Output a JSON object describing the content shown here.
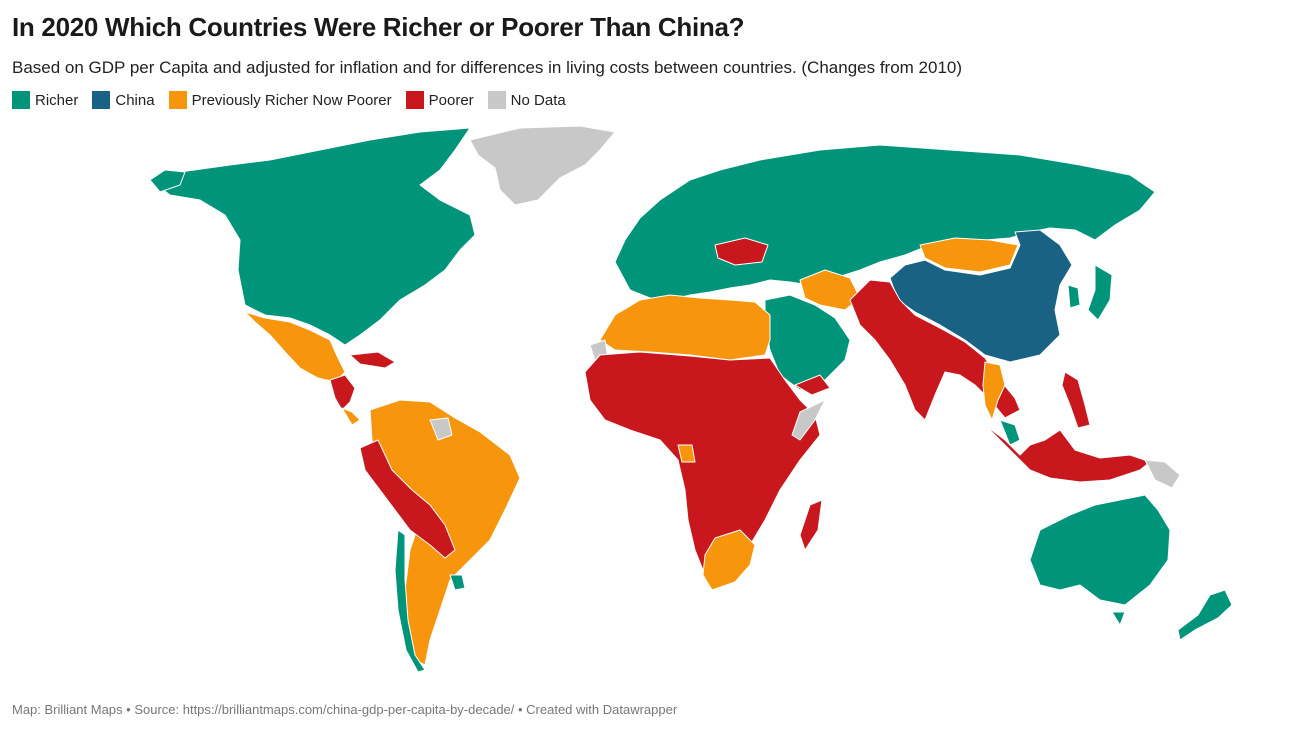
{
  "title": "In 2020 Which Countries Were Richer or Poorer Than China?",
  "subtitle": "Based on GDP per Capita and adjusted for inflation and for differences in living costs between countries. (Changes from 2010)",
  "legend": [
    {
      "label": "Richer",
      "color": "#00957a"
    },
    {
      "label": "China",
      "color": "#1a6283"
    },
    {
      "label": "Previously Richer Now Poorer",
      "color": "#f7960d"
    },
    {
      "label": "Poorer",
      "color": "#c8181e"
    },
    {
      "label": "No Data",
      "color": "#c8c8c8"
    }
  ],
  "footer": "Map: Brilliant Maps • Source: https://brilliantmaps.com/china-gdp-per-capita-by-decade/ • Created with Datawrapper"
}
